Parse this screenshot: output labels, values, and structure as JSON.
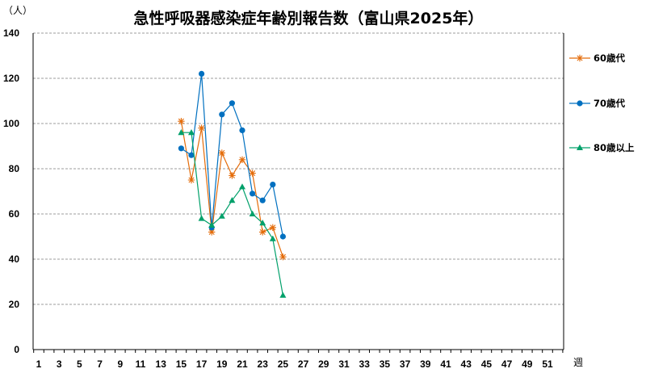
{
  "chart_data": {
    "type": "line",
    "title": "急性呼吸器感染症年齢別報告数（富山県2025年）",
    "ylabel": "（人）",
    "xlabel": "週",
    "xlim": [
      1,
      52
    ],
    "ylim": [
      0,
      140
    ],
    "yticks": [
      0,
      20,
      40,
      60,
      80,
      100,
      120,
      140
    ],
    "xticks": [
      1,
      3,
      5,
      7,
      9,
      11,
      13,
      15,
      17,
      19,
      21,
      23,
      25,
      27,
      29,
      31,
      33,
      35,
      37,
      39,
      41,
      43,
      45,
      47,
      49,
      51
    ],
    "grid": "horizontal-dashed",
    "legend": "right",
    "series": [
      {
        "name": "60歳代",
        "color": "#e46c0a",
        "marker": "asterisk",
        "x": [
          15,
          16,
          17,
          18,
          19,
          20,
          21,
          22,
          23,
          24,
          25
        ],
        "values": [
          101,
          75,
          98,
          52,
          87,
          77,
          84,
          78,
          52,
          54,
          41
        ]
      },
      {
        "name": "70歳代",
        "color": "#0070c0",
        "marker": "circle",
        "x": [
          15,
          16,
          17,
          18,
          19,
          20,
          21,
          22,
          23,
          24,
          25
        ],
        "values": [
          89,
          86,
          122,
          54,
          104,
          109,
          97,
          69,
          66,
          73,
          50
        ]
      },
      {
        "name": "80歳以上",
        "color": "#00a06a",
        "marker": "triangle",
        "x": [
          15,
          16,
          17,
          18,
          19,
          20,
          21,
          22,
          23,
          24,
          25
        ],
        "values": [
          96,
          96,
          58,
          55,
          59,
          66,
          72,
          60,
          56,
          49,
          24
        ]
      }
    ]
  }
}
